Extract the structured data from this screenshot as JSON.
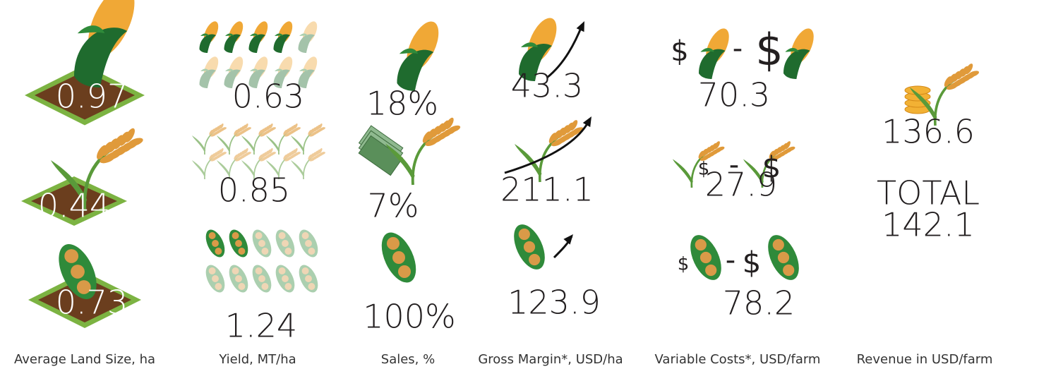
{
  "columns": [
    {
      "label": "Average Land Size, ha",
      "items": [
        "0.97",
        "0.44",
        "0.73"
      ]
    },
    {
      "label": "Yield, MT/ha",
      "items": [
        "0.63",
        "0.85",
        "1.24"
      ]
    },
    {
      "label": "Sales, %",
      "items": [
        "18%",
        "7%",
        "100%"
      ]
    },
    {
      "label": "Gross Margin*, USD/ha",
      "items": [
        "43.3",
        "211.1",
        "123.9"
      ]
    },
    {
      "label": "Variable Costs*, USD/farm",
      "items": [
        {
          "value": "70.3",
          "left": "$",
          "op": "-",
          "right": "$"
        },
        {
          "value": "27.9",
          "left": "$",
          "op": "-",
          "right": "$"
        },
        {
          "value": "78.2",
          "left": "$",
          "op": "-",
          "right": "$"
        }
      ]
    },
    {
      "label": "Revenue in USD/farm",
      "items": [
        "136.6",
        "TOTAL",
        "142.1"
      ]
    }
  ]
}
